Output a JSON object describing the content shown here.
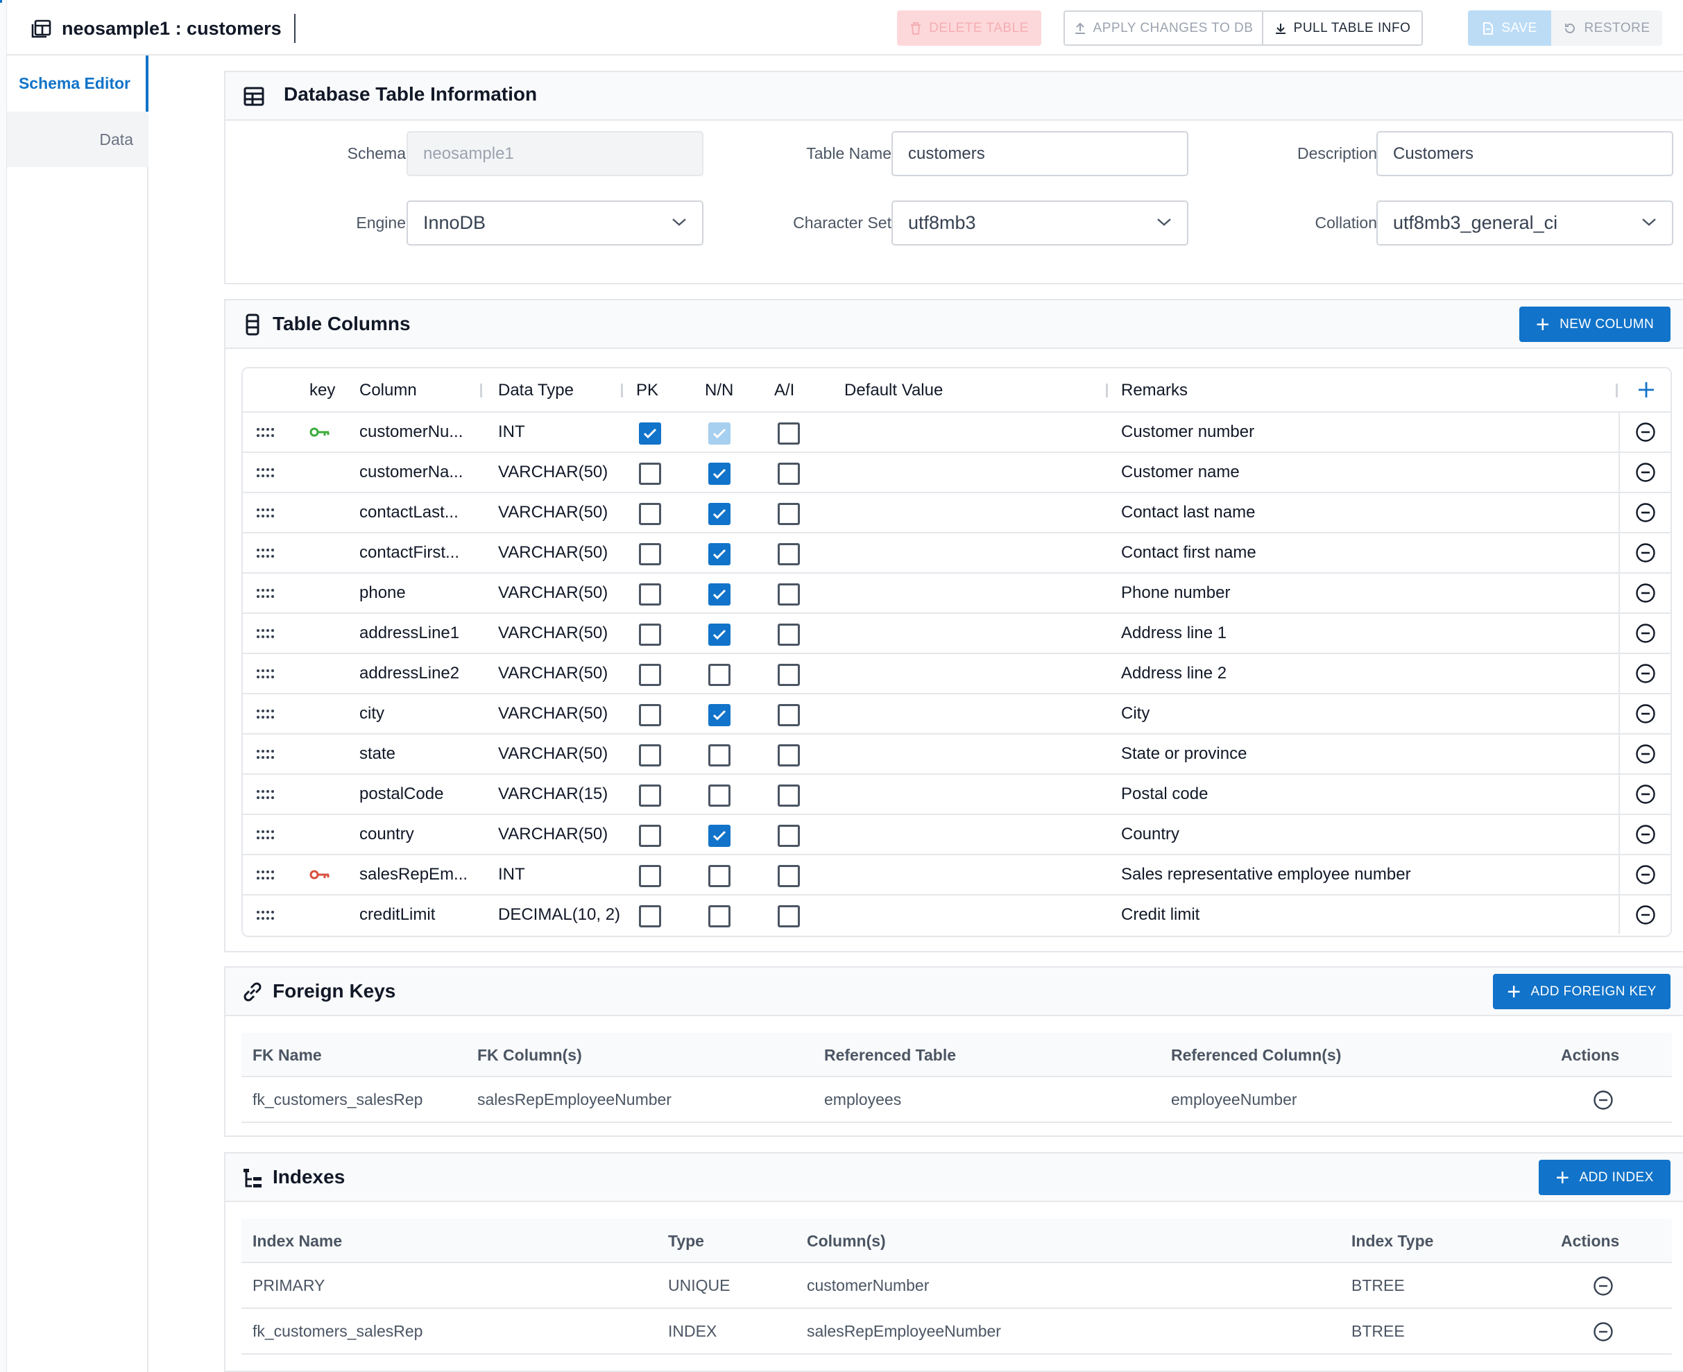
{
  "header": {
    "title": "neosample1 : customers",
    "delete_label": "DELETE TABLE",
    "apply_label": "APPLY CHANGES TO DB",
    "pull_label": "PULL TABLE INFO",
    "save_label": "SAVE",
    "restore_label": "RESTORE"
  },
  "sidebar": {
    "tabs": [
      {
        "label": "Schema Editor",
        "active": true
      },
      {
        "label": "Data",
        "active": false
      }
    ]
  },
  "db_info": {
    "title": "Database Table Information",
    "schema_label": "Schema",
    "schema_value": "neosample1",
    "table_name_label": "Table Name",
    "table_name_value": "customers",
    "description_label": "Description",
    "description_value": "Customers",
    "engine_label": "Engine",
    "engine_value": "InnoDB",
    "charset_label": "Character Set",
    "charset_value": "utf8mb3",
    "collation_label": "Collation",
    "collation_value": "utf8mb3_general_ci"
  },
  "columns_panel": {
    "title": "Table Columns",
    "new_column_label": "NEW COLUMN",
    "headers": {
      "key": "key",
      "column": "Column",
      "data_type": "Data Type",
      "pk": "PK",
      "nn": "N/N",
      "ai": "A/I",
      "default": "Default Value",
      "remarks": "Remarks"
    },
    "rows": [
      {
        "key": "primary",
        "name": "customerNu...",
        "type": "INT",
        "pk": true,
        "nn": "implied",
        "ai": false,
        "default": "",
        "remarks": "Customer number"
      },
      {
        "key": "",
        "name": "customerNa...",
        "type": "VARCHAR(50)",
        "pk": false,
        "nn": true,
        "ai": false,
        "default": "",
        "remarks": "Customer name"
      },
      {
        "key": "",
        "name": "contactLast...",
        "type": "VARCHAR(50)",
        "pk": false,
        "nn": true,
        "ai": false,
        "default": "",
        "remarks": "Contact last name"
      },
      {
        "key": "",
        "name": "contactFirst...",
        "type": "VARCHAR(50)",
        "pk": false,
        "nn": true,
        "ai": false,
        "default": "",
        "remarks": "Contact first name"
      },
      {
        "key": "",
        "name": "phone",
        "type": "VARCHAR(50)",
        "pk": false,
        "nn": true,
        "ai": false,
        "default": "",
        "remarks": "Phone number"
      },
      {
        "key": "",
        "name": "addressLine1",
        "type": "VARCHAR(50)",
        "pk": false,
        "nn": true,
        "ai": false,
        "default": "",
        "remarks": "Address line 1"
      },
      {
        "key": "",
        "name": "addressLine2",
        "type": "VARCHAR(50)",
        "pk": false,
        "nn": false,
        "ai": false,
        "default": "",
        "remarks": "Address line 2"
      },
      {
        "key": "",
        "name": "city",
        "type": "VARCHAR(50)",
        "pk": false,
        "nn": true,
        "ai": false,
        "default": "",
        "remarks": "City"
      },
      {
        "key": "",
        "name": "state",
        "type": "VARCHAR(50)",
        "pk": false,
        "nn": false,
        "ai": false,
        "default": "",
        "remarks": "State or province"
      },
      {
        "key": "",
        "name": "postalCode",
        "type": "VARCHAR(15)",
        "pk": false,
        "nn": false,
        "ai": false,
        "default": "",
        "remarks": "Postal code"
      },
      {
        "key": "",
        "name": "country",
        "type": "VARCHAR(50)",
        "pk": false,
        "nn": true,
        "ai": false,
        "default": "",
        "remarks": "Country"
      },
      {
        "key": "foreign",
        "name": "salesRepEm...",
        "type": "INT",
        "pk": false,
        "nn": false,
        "ai": false,
        "default": "",
        "remarks": "Sales representative employee number"
      },
      {
        "key": "",
        "name": "creditLimit",
        "type": "DECIMAL(10, 2)",
        "pk": false,
        "nn": false,
        "ai": false,
        "default": "",
        "remarks": "Credit limit"
      }
    ]
  },
  "foreign_keys": {
    "title": "Foreign Keys",
    "add_label": "ADD FOREIGN KEY",
    "headers": [
      "FK Name",
      "FK Column(s)",
      "Referenced Table",
      "Referenced Column(s)",
      "Actions"
    ],
    "rows": [
      {
        "name": "fk_customers_salesRep",
        "columns": "salesRepEmployeeNumber",
        "ref_table": "employees",
        "ref_columns": "employeeNumber"
      }
    ]
  },
  "indexes": {
    "title": "Indexes",
    "add_label": "ADD INDEX",
    "headers": [
      "Index Name",
      "Type",
      "Column(s)",
      "Index Type",
      "Actions"
    ],
    "rows": [
      {
        "name": "PRIMARY",
        "type": "UNIQUE",
        "columns": "customerNumber",
        "index_type": "BTREE"
      },
      {
        "name": "fk_customers_salesRep",
        "type": "INDEX",
        "columns": "salesRepEmployeeNumber",
        "index_type": "BTREE"
      }
    ]
  },
  "colors": {
    "accent": "#1173c9",
    "primary_key_icon": "#3cab3c",
    "foreign_key_icon": "#d9503f",
    "delete_disabled_bg": "#fdd8da"
  },
  "icons": {
    "title": "table-icon",
    "db_info": "table-grid-icon",
    "columns": "columns-icon",
    "foreign_keys": "link-icon",
    "indexes": "index-tree-icon",
    "row_handle": "drag-handle-icon",
    "row_remove": "minus-circle-icon",
    "add_row": "plus-icon"
  }
}
